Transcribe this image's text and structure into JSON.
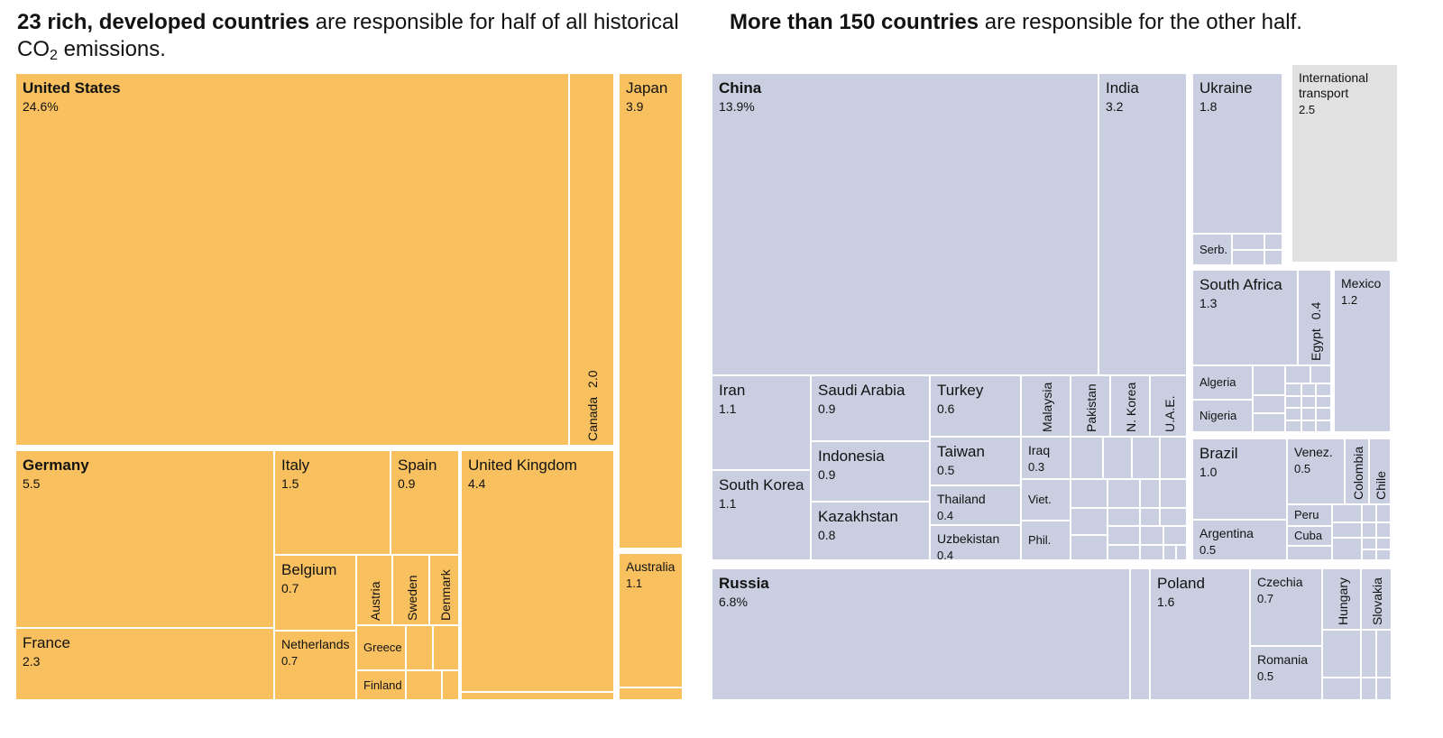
{
  "headlines": {
    "left": {
      "bold": "23 rich, developed countries",
      "rest": " are responsible for half of all historical CO",
      "sub": "2",
      "tail": " emissions."
    },
    "right": {
      "bold": "More than 150 countries",
      "rest": " are responsible for the other half."
    }
  },
  "colors": {
    "developed": "#f8c05f",
    "other": "#c9cfe1",
    "international": "#e1e1e1"
  },
  "chart_data": {
    "type": "treemap",
    "unit": "% of historical CO2 emissions",
    "groups": [
      {
        "name": "23 rich, developed countries",
        "items": [
          {
            "name": "United States",
            "value": "24.6%"
          },
          {
            "name": "Canada",
            "value": "2.0"
          },
          {
            "name": "Japan",
            "value": "3.9"
          },
          {
            "name": "Germany",
            "value": "5.5"
          },
          {
            "name": "Italy",
            "value": "1.5"
          },
          {
            "name": "Spain",
            "value": "0.9"
          },
          {
            "name": "United Kingdom",
            "value": "4.4"
          },
          {
            "name": "Australia",
            "value": "1.1"
          },
          {
            "name": "Belgium",
            "value": "0.7"
          },
          {
            "name": "Austria",
            "value": ""
          },
          {
            "name": "Sweden",
            "value": ""
          },
          {
            "name": "Denmark",
            "value": ""
          },
          {
            "name": "France",
            "value": "2.3"
          },
          {
            "name": "Netherlands",
            "value": "0.7"
          },
          {
            "name": "Greece",
            "value": ""
          },
          {
            "name": "Finland",
            "value": ""
          }
        ]
      },
      {
        "name": "More than 150 countries",
        "items": [
          {
            "name": "China",
            "value": "13.9%"
          },
          {
            "name": "India",
            "value": "3.2"
          },
          {
            "name": "Ukraine",
            "value": "1.8"
          },
          {
            "name": "Serb.",
            "value": ""
          },
          {
            "name": "International transport",
            "value": "2.5"
          },
          {
            "name": "Iran",
            "value": "1.1"
          },
          {
            "name": "Saudi Arabia",
            "value": "0.9"
          },
          {
            "name": "Turkey",
            "value": "0.6"
          },
          {
            "name": "Malaysia",
            "value": ""
          },
          {
            "name": "Pakistan",
            "value": ""
          },
          {
            "name": "N. Korea",
            "value": ""
          },
          {
            "name": "U.A.E.",
            "value": ""
          },
          {
            "name": "South Africa",
            "value": "1.3"
          },
          {
            "name": "Egypt",
            "value": "0.4"
          },
          {
            "name": "Mexico",
            "value": "1.2"
          },
          {
            "name": "Algeria",
            "value": ""
          },
          {
            "name": "Nigeria",
            "value": ""
          },
          {
            "name": "Indonesia",
            "value": "0.9"
          },
          {
            "name": "Taiwan",
            "value": "0.5"
          },
          {
            "name": "Iraq",
            "value": "0.3"
          },
          {
            "name": "South Korea",
            "value": "1.1"
          },
          {
            "name": "Kazakhstan",
            "value": "0.8"
          },
          {
            "name": "Thailand",
            "value": "0.4"
          },
          {
            "name": "Viet.",
            "value": ""
          },
          {
            "name": "Uzbekistan",
            "value": "0.4"
          },
          {
            "name": "Phil.",
            "value": ""
          },
          {
            "name": "Brazil",
            "value": "1.0"
          },
          {
            "name": "Venez.",
            "value": "0.5"
          },
          {
            "name": "Colombia",
            "value": ""
          },
          {
            "name": "Chile",
            "value": ""
          },
          {
            "name": "Peru",
            "value": ""
          },
          {
            "name": "Cuba",
            "value": ""
          },
          {
            "name": "Argentina",
            "value": "0.5"
          },
          {
            "name": "Russia",
            "value": "6.8%"
          },
          {
            "name": "Poland",
            "value": "1.6"
          },
          {
            "name": "Czechia",
            "value": "0.7"
          },
          {
            "name": "Hungary",
            "value": ""
          },
          {
            "name": "Slovakia",
            "value": ""
          },
          {
            "name": "Romania",
            "value": "0.5"
          }
        ]
      }
    ]
  }
}
